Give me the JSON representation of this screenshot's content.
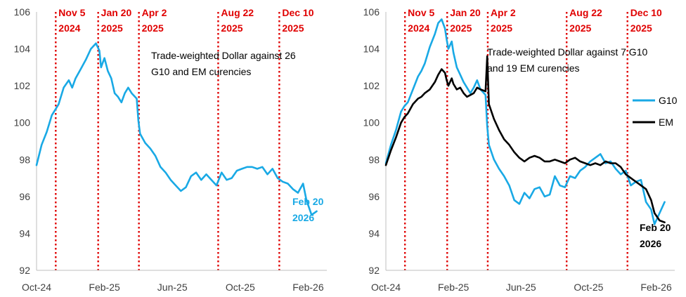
{
  "chart_data": [
    {
      "type": "line",
      "title": "Trade-weighted Dollar against 26 G10 and EM curencies",
      "annotation_lines": [
        "Trade-weighted Dollar against 26",
        "G10 and EM curencies"
      ],
      "ylim": [
        92,
        106
      ],
      "yticks": [
        "92",
        "94",
        "96",
        "98",
        "100",
        "102",
        "104",
        "106"
      ],
      "ytick_values": [
        92,
        94,
        96,
        98,
        100,
        102,
        104,
        106
      ],
      "x_range": [
        0,
        17.1
      ],
      "xticks": [
        {
          "label": "Oct-24",
          "m": 0
        },
        {
          "label": "Feb-25",
          "m": 4
        },
        {
          "label": "Jun-25",
          "m": 8
        },
        {
          "label": "Oct-25",
          "m": 12
        },
        {
          "label": "Feb-26",
          "m": 16
        }
      ],
      "events": [
        {
          "line1": "Nov 5",
          "line2": "2024",
          "m": 1.13
        },
        {
          "line1": "Jan 20",
          "line2": "2025",
          "m": 3.63
        },
        {
          "line1": "Apr 2",
          "line2": "2025",
          "m": 6.03
        },
        {
          "line1": "Aug 22",
          "line2": "2025",
          "m": 10.7
        },
        {
          "line1": "Dec 10",
          "line2": "2025",
          "m": 14.3
        }
      ],
      "end_label": {
        "line1": "Feb 20",
        "line2": "2026"
      },
      "series": [
        {
          "name": "Trade-weighted Dollar",
          "color": "#19a9e5",
          "x": [
            0,
            0.3,
            0.6,
            0.9,
            1.1,
            1.3,
            1.6,
            1.9,
            2.1,
            2.3,
            2.6,
            2.9,
            3.2,
            3.5,
            3.7,
            3.8,
            4.0,
            4.2,
            4.4,
            4.6,
            4.8,
            5.0,
            5.2,
            5.4,
            5.6,
            5.9,
            6.0,
            6.1,
            6.4,
            6.7,
            7.0,
            7.3,
            7.6,
            7.9,
            8.2,
            8.5,
            8.8,
            9.1,
            9.4,
            9.7,
            10.0,
            10.3,
            10.6,
            10.9,
            11.2,
            11.5,
            11.8,
            12.1,
            12.4,
            12.7,
            13.0,
            13.3,
            13.6,
            13.9,
            14.2,
            14.5,
            14.8,
            15.1,
            15.4,
            15.7,
            15.9,
            16.2,
            16.5
          ],
          "values": [
            97.7,
            98.8,
            99.5,
            100.4,
            100.7,
            101.0,
            101.9,
            102.3,
            101.9,
            102.4,
            102.9,
            103.4,
            104.0,
            104.3,
            103.9,
            103.0,
            103.5,
            102.8,
            102.4,
            101.6,
            101.4,
            101.1,
            101.6,
            101.9,
            101.6,
            101.3,
            100.1,
            99.4,
            98.9,
            98.6,
            98.2,
            97.6,
            97.3,
            96.9,
            96.6,
            96.3,
            96.5,
            97.1,
            97.3,
            96.9,
            97.2,
            96.9,
            96.6,
            97.3,
            96.9,
            97.0,
            97.4,
            97.5,
            97.6,
            97.6,
            97.5,
            97.6,
            97.2,
            97.5,
            97.0,
            96.8,
            96.7,
            96.4,
            96.2,
            96.7,
            95.8,
            95.0,
            95.2
          ]
        }
      ]
    },
    {
      "type": "line",
      "title": "Trade-weighted Dollar against 7 G10 and 19 EM curencies",
      "annotation_lines": [
        "Trade-weighted Dollar against 7 G10",
        "and 19 EM curencies"
      ],
      "ylim": [
        92,
        106
      ],
      "yticks": [
        "92",
        "94",
        "96",
        "98",
        "100",
        "102",
        "104",
        "106"
      ],
      "ytick_values": [
        92,
        94,
        96,
        98,
        100,
        102,
        104,
        106
      ],
      "x_range": [
        0,
        17.1
      ],
      "xticks": [
        {
          "label": "Oct-24",
          "m": 0
        },
        {
          "label": "Feb-25",
          "m": 4
        },
        {
          "label": "Jun-25",
          "m": 8
        },
        {
          "label": "Oct-25",
          "m": 12
        },
        {
          "label": "Feb-26",
          "m": 16
        }
      ],
      "events": [
        {
          "line1": "Nov 5",
          "line2": "2024",
          "m": 1.13
        },
        {
          "line1": "Jan 20",
          "line2": "2025",
          "m": 3.63
        },
        {
          "line1": "Apr 2",
          "line2": "2025",
          "m": 6.03
        },
        {
          "line1": "Aug 22",
          "line2": "2025",
          "m": 10.7
        },
        {
          "line1": "Dec 10",
          "line2": "2025",
          "m": 14.3
        }
      ],
      "legend": [
        {
          "label": "G10",
          "color": "#19a9e5"
        },
        {
          "label": "EM",
          "color": "#000000"
        }
      ],
      "end_label": {
        "line1": "Feb 20",
        "line2": "2026"
      },
      "series": [
        {
          "name": "G10",
          "color": "#19a9e5",
          "x": [
            0,
            0.3,
            0.6,
            0.9,
            1.1,
            1.3,
            1.6,
            1.9,
            2.1,
            2.3,
            2.6,
            2.9,
            3.1,
            3.3,
            3.5,
            3.6,
            3.7,
            3.9,
            4.0,
            4.2,
            4.4,
            4.6,
            4.8,
            5.0,
            5.2,
            5.4,
            5.6,
            5.9,
            6.0,
            6.1,
            6.4,
            6.7,
            7.0,
            7.3,
            7.6,
            7.9,
            8.2,
            8.5,
            8.8,
            9.1,
            9.4,
            9.7,
            10.0,
            10.3,
            10.6,
            10.9,
            11.2,
            11.5,
            11.8,
            12.1,
            12.4,
            12.7,
            13.0,
            13.3,
            13.6,
            13.9,
            14.2,
            14.5,
            14.8,
            15.1,
            15.4,
            15.7,
            15.9,
            16.2,
            16.5
          ],
          "values": [
            97.8,
            98.8,
            99.6,
            100.6,
            100.9,
            101.1,
            101.8,
            102.5,
            102.8,
            103.2,
            104.1,
            104.8,
            105.4,
            105.6,
            105.1,
            104.5,
            104.0,
            104.4,
            103.8,
            103.0,
            102.6,
            102.2,
            101.9,
            101.6,
            101.9,
            102.3,
            101.8,
            101.5,
            99.8,
            98.8,
            98.0,
            97.5,
            97.1,
            96.6,
            95.8,
            95.6,
            96.2,
            95.9,
            96.4,
            96.5,
            96.0,
            96.1,
            97.1,
            96.6,
            96.5,
            97.1,
            97.0,
            97.4,
            97.6,
            97.9,
            98.1,
            98.3,
            97.8,
            97.9,
            97.5,
            97.2,
            97.4,
            96.6,
            96.8,
            96.9,
            95.7,
            95.3,
            94.5,
            95.1,
            95.7
          ]
        },
        {
          "name": "EM",
          "color": "#000000",
          "x": [
            0,
            0.3,
            0.6,
            0.9,
            1.1,
            1.3,
            1.6,
            1.9,
            2.1,
            2.3,
            2.6,
            2.9,
            3.1,
            3.3,
            3.5,
            3.6,
            3.7,
            3.9,
            4.0,
            4.2,
            4.4,
            4.6,
            4.8,
            5.0,
            5.2,
            5.4,
            5.6,
            5.9,
            6.0,
            6.1,
            6.4,
            6.7,
            7.0,
            7.3,
            7.6,
            7.9,
            8.2,
            8.5,
            8.8,
            9.1,
            9.4,
            9.7,
            10.0,
            10.3,
            10.6,
            10.9,
            11.2,
            11.5,
            11.8,
            12.1,
            12.4,
            12.7,
            13.0,
            13.3,
            13.6,
            13.9,
            14.2,
            14.5,
            14.8,
            15.1,
            15.4,
            15.7,
            15.9,
            16.2,
            16.5
          ],
          "values": [
            97.7,
            98.5,
            99.2,
            100.0,
            100.3,
            100.5,
            101.0,
            101.3,
            101.4,
            101.6,
            101.8,
            102.2,
            102.6,
            102.9,
            102.7,
            102.3,
            102.0,
            102.4,
            102.1,
            101.8,
            101.9,
            101.6,
            101.4,
            101.5,
            101.6,
            101.9,
            101.8,
            101.7,
            103.6,
            101.0,
            100.2,
            99.6,
            99.1,
            98.8,
            98.4,
            98.1,
            97.9,
            98.1,
            98.2,
            98.1,
            97.9,
            97.9,
            98.0,
            97.9,
            97.8,
            98.0,
            98.1,
            97.9,
            97.8,
            97.7,
            97.8,
            97.7,
            97.9,
            97.8,
            97.8,
            97.6,
            97.2,
            97.0,
            96.8,
            96.6,
            96.4,
            95.8,
            95.1,
            94.7,
            94.6
          ]
        }
      ]
    }
  ]
}
